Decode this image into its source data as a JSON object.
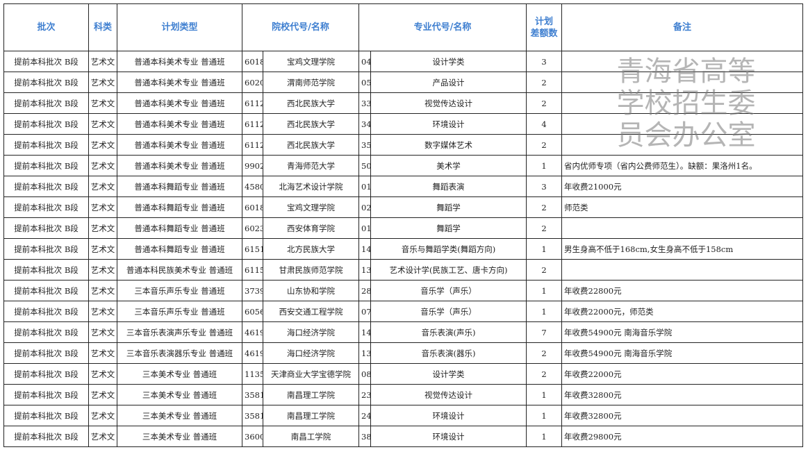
{
  "headers": [
    "批次",
    "科类",
    "计划类型",
    "院校代号/名称",
    "专业代号/名称",
    "计划\n差额数",
    "备注"
  ],
  "watermark": "青海省高等学校招生委员会办公室",
  "rows": [
    [
      "提前本科批次 B段",
      "艺术文",
      "普通本科美术专业 普通班",
      "6018",
      "宝鸡文理学院",
      "04",
      "设计学类",
      "3",
      ""
    ],
    [
      "提前本科批次 B段",
      "艺术文",
      "普通本科美术专业 普通班",
      "6020",
      "渭南师范学院",
      "05",
      "产品设计",
      "2",
      ""
    ],
    [
      "提前本科批次 B段",
      "艺术文",
      "普通本科美术专业 普通班",
      "6112",
      "西北民族大学",
      "33",
      "视觉传达设计",
      "2",
      ""
    ],
    [
      "提前本科批次 B段",
      "艺术文",
      "普通本科美术专业 普通班",
      "6112",
      "西北民族大学",
      "34",
      "环境设计",
      "4",
      ""
    ],
    [
      "提前本科批次 B段",
      "艺术文",
      "普通本科美术专业 普通班",
      "6112",
      "西北民族大学",
      "35",
      "数字媒体艺术",
      "2",
      ""
    ],
    [
      "提前本科批次 B段",
      "艺术文",
      "普通本科美术专业 普通班",
      "9902",
      "青海师范大学",
      "50",
      "美术学",
      "1",
      "省内优师专项（省内公费师范生）。缺额：果洛州1名。"
    ],
    [
      "提前本科批次 B段",
      "艺术文",
      "普通本科舞蹈专业 普通班",
      "4580",
      "北海艺术设计学院",
      "01",
      "舞蹈表演",
      "3",
      "年收费21000元"
    ],
    [
      "提前本科批次 B段",
      "艺术文",
      "普通本科舞蹈专业 普通班",
      "6018",
      "宝鸡文理学院",
      "02",
      "舞蹈学",
      "2",
      "师范类"
    ],
    [
      "提前本科批次 B段",
      "艺术文",
      "普通本科舞蹈专业 普通班",
      "6023",
      "西安体育学院",
      "01",
      "舞蹈学",
      "2",
      ""
    ],
    [
      "提前本科批次 B段",
      "艺术文",
      "普通本科舞蹈专业 普通班",
      "6151",
      "北方民族大学",
      "14",
      "音乐与舞蹈学类(舞蹈方向)",
      "1",
      "男生身高不低于168cm,女生身高不低于158cm"
    ],
    [
      "提前本科批次 B段",
      "艺术文",
      "普通本科民族美术专业 普通班",
      "6115",
      "甘肃民族师范学院",
      "13",
      "艺术设计学(民族工艺、唐卡方向)",
      "2",
      ""
    ],
    [
      "提前本科批次 B段",
      "艺术文",
      "三本音乐声乐专业 普通班",
      "3739",
      "山东协和学院",
      "28",
      "音乐学（声乐）",
      "1",
      "年收费22800元"
    ],
    [
      "提前本科批次 B段",
      "艺术文",
      "三本音乐声乐专业 普通班",
      "6056",
      "西安交通工程学院",
      "07",
      "音乐学（声乐）",
      "1",
      "年收费22000元，师范类"
    ],
    [
      "提前本科批次 B段",
      "艺术文",
      "三本音乐表演声乐专业 普通班",
      "4619",
      "海口经济学院",
      "14",
      "音乐表演(声乐)",
      "7",
      "年收费54900元 南海音乐学院"
    ],
    [
      "提前本科批次 B段",
      "艺术文",
      "三本音乐表演器乐专业 普通班",
      "4619",
      "海口经济学院",
      "13",
      "音乐表演(器乐)",
      "2",
      "年收费54900元 南海音乐学院"
    ],
    [
      "提前本科批次 B段",
      "艺术文",
      "三本美术专业 普通班",
      "1135",
      "天津商业大学宝德学院",
      "08",
      "设计学类",
      "2",
      "年收费22000元"
    ],
    [
      "提前本科批次 B段",
      "艺术文",
      "三本美术专业 普通班",
      "3581",
      "南昌理工学院",
      "23",
      "视觉传达设计",
      "1",
      "年收费32800元"
    ],
    [
      "提前本科批次 B段",
      "艺术文",
      "三本美术专业 普通班",
      "3581",
      "南昌理工学院",
      "24",
      "环境设计",
      "1",
      "年收费32800元"
    ],
    [
      "提前本科批次 B段",
      "艺术文",
      "三本美术专业 普通班",
      "3600",
      "南昌工学院",
      "38",
      "环境设计",
      "1",
      "年收费29800元"
    ]
  ]
}
